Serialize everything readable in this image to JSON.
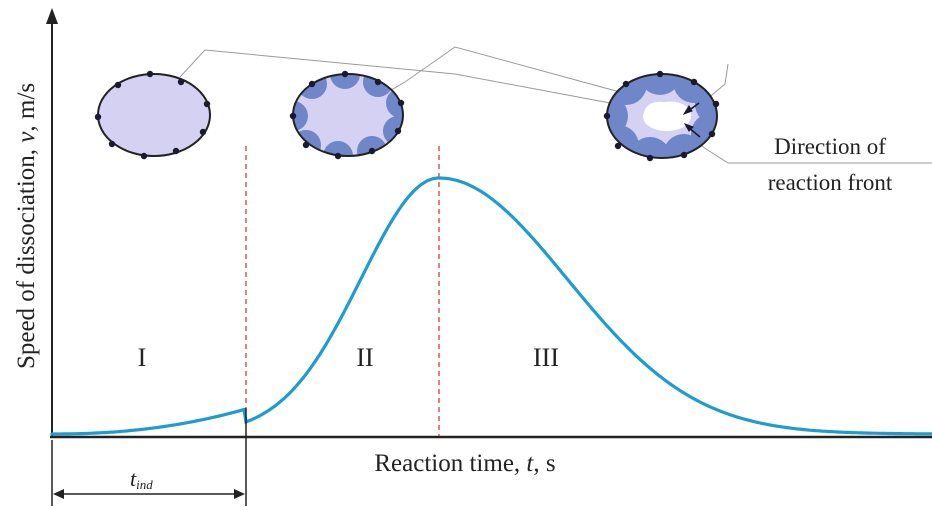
{
  "labels": {
    "y_axis": "Speed of dissociation, ",
    "y_axis_var": "v",
    "y_axis_unit": ", m/s",
    "x_axis": "Reaction time, ",
    "x_axis_var": "t",
    "x_axis_unit": ", s",
    "stage_1": "I",
    "stage_2": "II",
    "stage_3": "III",
    "induction_main": "t",
    "induction_sub": "ind",
    "direction_line1": "Direction of",
    "direction_line2": "reaction front"
  },
  "colors": {
    "curve": "#1e9bd0",
    "axis": "#222222",
    "divider": "#e03a2a",
    "particle_fill": "#d4d1f2",
    "particle_zone": "#6f86c8",
    "dot": "#1a1a2e",
    "leader": "#9a9a9a"
  },
  "curve_shape": "bell-shaped speed curve with a slow induction rise, a single peak at the stage II/III boundary and a long decaying tail",
  "particle_stages": [
    "intact particle with surface nuclei",
    "nuclei grown into reaction zones",
    "reaction front moving toward the core"
  ]
}
